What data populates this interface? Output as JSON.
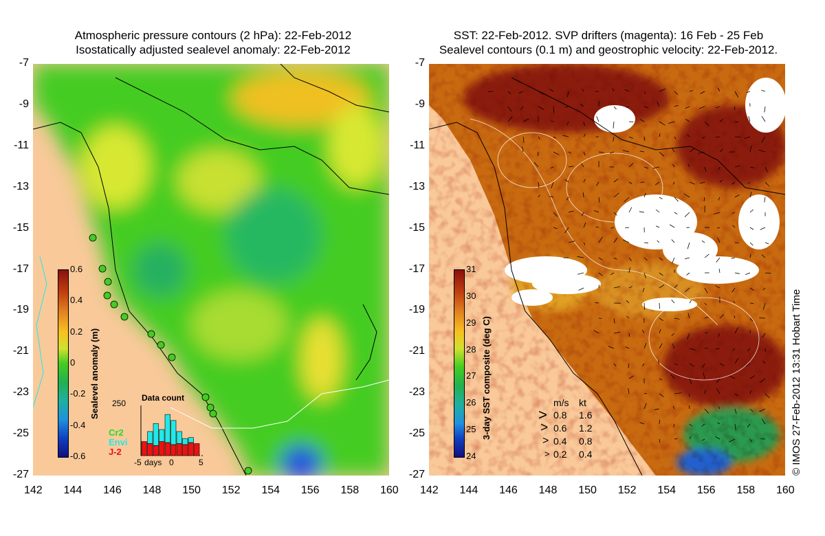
{
  "left_panel": {
    "title_line1": "Atmospheric pressure contours (2 hPa): 22-Feb-2012",
    "title_line2": "Isostatically adjusted sealevel anomaly: 22-Feb-2012",
    "colorbar": {
      "label": "Sealevel anomaly (m)",
      "ticks": [
        "0.6",
        "0.4",
        "0.2",
        "0",
        "-0.2",
        "-0.4",
        "-0.6"
      ],
      "range": [
        -0.6,
        0.6
      ]
    },
    "data_count": {
      "title": "Data count",
      "ymax_label": "250",
      "xlabel": "days",
      "xticks": [
        "-5",
        "0",
        "5"
      ],
      "satellites": [
        {
          "name": "Cr2",
          "color": "#22dd22"
        },
        {
          "name": "Envi",
          "color": "#22e8e8"
        },
        {
          "name": "J-2",
          "color": "#ee1111"
        }
      ],
      "bars": [
        {
          "day": -5,
          "j2": 70,
          "envi": 0
        },
        {
          "day": -4,
          "j2": 60,
          "envi": 60
        },
        {
          "day": -3,
          "j2": 50,
          "envi": 110
        },
        {
          "day": -2,
          "j2": 70,
          "envi": 60
        },
        {
          "day": -1,
          "j2": 65,
          "envi": 140
        },
        {
          "day": 0,
          "j2": 55,
          "envi": 120
        },
        {
          "day": 1,
          "j2": 60,
          "envi": 60
        },
        {
          "day": 2,
          "j2": 55,
          "envi": 30
        },
        {
          "day": 3,
          "j2": 65,
          "envi": 25
        },
        {
          "day": 4,
          "j2": 60,
          "envi": 0
        }
      ]
    }
  },
  "right_panel": {
    "title_line1": "SST: 22-Feb-2012. SVP drifters (magenta): 16 Feb - 25 Feb",
    "title_line2": "Sealevel contours (0.1 m) and geostrophic velocity: 22-Feb-2012.",
    "colorbar": {
      "label": "3-day SST composite (deg C)",
      "ticks": [
        "31",
        "30",
        "29",
        "28",
        "27",
        "26",
        "25",
        "24"
      ],
      "range": [
        24,
        31
      ]
    },
    "velocity_legend": {
      "header_ms": "m/s",
      "header_kt": "kt",
      "rows": [
        {
          "ms": "0.8",
          "kt": "1.6"
        },
        {
          "ms": "0.6",
          "kt": "1.2"
        },
        {
          "ms": "0.4",
          "kt": "0.8"
        },
        {
          "ms": "0.2",
          "kt": "0.4"
        }
      ]
    }
  },
  "axes": {
    "lat_ticks": [
      "-7",
      "-9",
      "-11",
      "-13",
      "-15",
      "-17",
      "-19",
      "-21",
      "-23",
      "-25",
      "-27"
    ],
    "lon_ticks": [
      "142",
      "144",
      "146",
      "148",
      "150",
      "152",
      "154",
      "156",
      "158",
      "160"
    ]
  },
  "credit": "© IMOS 27-Feb-2012 13:31 Hobart Time",
  "colors": {
    "land": "#f9c99a",
    "cloud": "#ffffff",
    "sla_green": "#33cc22",
    "sla_yellow": "#d8e830",
    "sst_warm": "#b84a0c",
    "sst_hot": "#8b1a10"
  }
}
